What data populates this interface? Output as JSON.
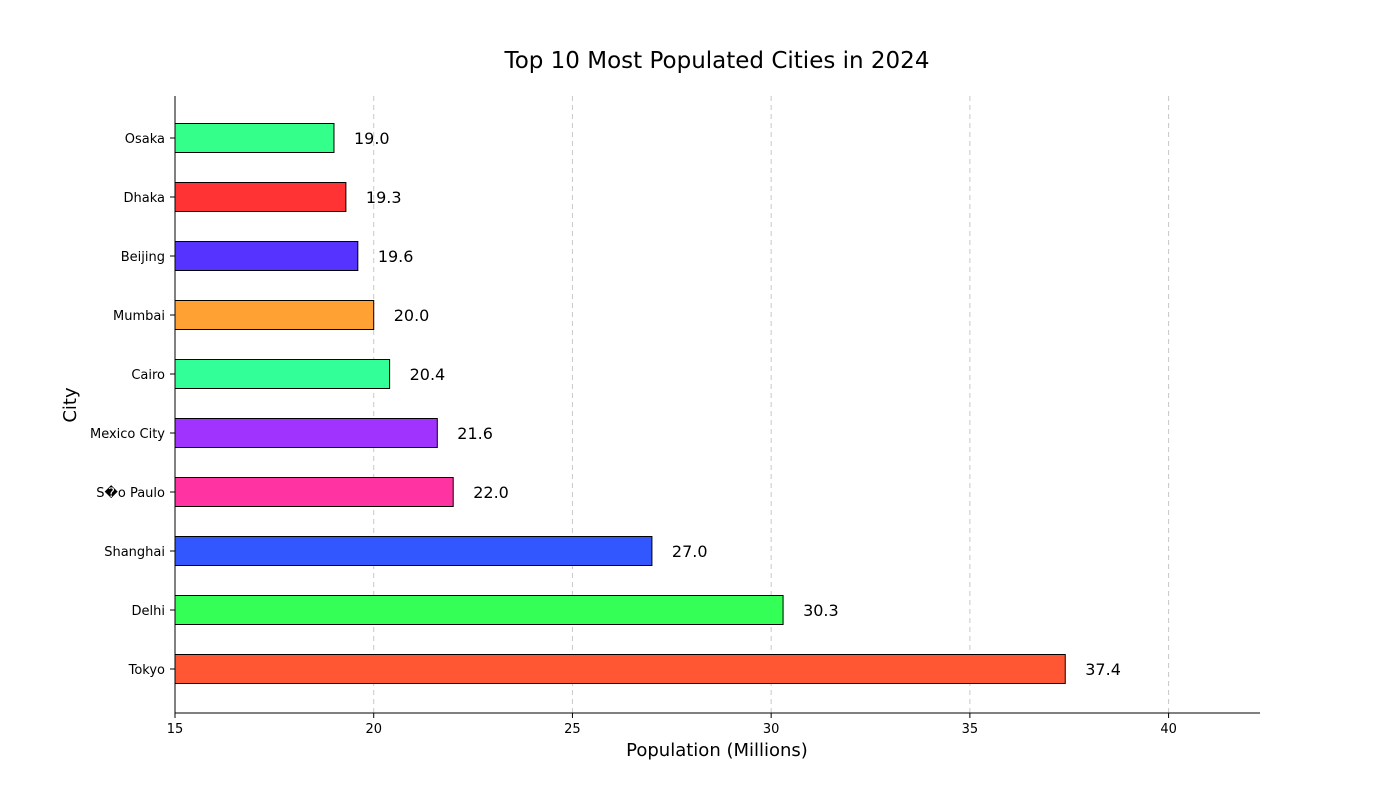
{
  "chart_data": {
    "type": "bar",
    "orientation": "horizontal",
    "title": "Top 10 Most Populated Cities in 2024",
    "xlabel": "Population (Millions)",
    "ylabel": "City",
    "xlim": [
      15,
      42.3
    ],
    "xticks": [
      15,
      20,
      25,
      30,
      35,
      40
    ],
    "grid": "x-dashed",
    "categories": [
      "Tokyo",
      "Delhi",
      "Shanghai",
      "S�o Paulo",
      "Mexico City",
      "Cairo",
      "Mumbai",
      "Beijing",
      "Dhaka",
      "Osaka"
    ],
    "values": [
      37.4,
      30.3,
      27.0,
      22.0,
      21.6,
      20.4,
      20.0,
      19.6,
      19.3,
      19.0
    ],
    "value_labels": [
      "37.4",
      "30.3",
      "27.0",
      "22.0",
      "21.6",
      "20.4",
      "20.0",
      "19.6",
      "19.3",
      "19.0"
    ],
    "colors": [
      "#ff5733",
      "#33ff57",
      "#3357ff",
      "#ff33a1",
      "#a133ff",
      "#33ff99",
      "#ffa133",
      "#5733ff",
      "#ff3333",
      "#33ff8a"
    ]
  }
}
